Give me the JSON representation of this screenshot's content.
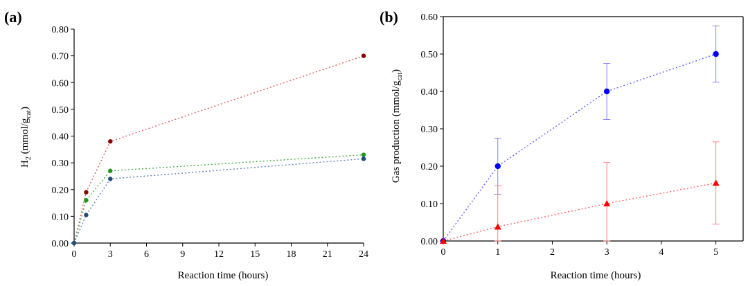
{
  "chart_data": [
    {
      "panel_label": "(a)",
      "type": "line",
      "xlabel": "Reaction time (hours)",
      "ylabel": "H",
      "ylabel_sub": "2",
      "ylabel_unit_pre": " (mmol/g",
      "ylabel_unit_sub": "cat",
      "ylabel_unit_post": ")",
      "xlim": [
        0,
        24
      ],
      "ylim": [
        0,
        0.8
      ],
      "xticks": [
        0,
        3,
        6,
        9,
        12,
        15,
        18,
        21,
        24
      ],
      "xtick_labels": [
        "0",
        "3",
        "6",
        "9",
        "12",
        "15",
        "18",
        "21",
        "24"
      ],
      "yticks": [
        0,
        0.1,
        0.2,
        0.3,
        0.4,
        0.5,
        0.6,
        0.7,
        0.8
      ],
      "ytick_labels": [
        "0.00",
        "0.10",
        "0.20",
        "0.30",
        "0.40",
        "0.50",
        "0.60",
        "0.70",
        "0.80"
      ],
      "series": [
        {
          "name": "series-red",
          "color": "#8b0000",
          "line_color": "#e06060",
          "x": [
            0,
            1,
            3,
            24
          ],
          "y": [
            0,
            0.19,
            0.38,
            0.7
          ]
        },
        {
          "name": "series-green",
          "color": "#1a9a1a",
          "line_color": "#40b040",
          "x": [
            0,
            1,
            3,
            24
          ],
          "y": [
            0,
            0.16,
            0.27,
            0.33
          ]
        },
        {
          "name": "series-blue",
          "color": "#1f4e79",
          "line_color": "#6080c0",
          "x": [
            0,
            1,
            3,
            24
          ],
          "y": [
            0,
            0.105,
            0.24,
            0.315
          ]
        }
      ]
    },
    {
      "panel_label": "(b)",
      "type": "line",
      "xlabel": "Reaction time (hours)",
      "ylabel": "Gas production (mmol/g",
      "ylabel_unit_sub": "cat",
      "ylabel_unit_post": ")",
      "xlim": [
        0,
        5.5
      ],
      "ylim": [
        0,
        0.6
      ],
      "xticks": [
        0,
        1,
        2,
        3,
        4,
        5
      ],
      "xtick_labels": [
        "0",
        "1",
        "2",
        "3",
        "4",
        "5"
      ],
      "yticks": [
        0,
        0.1,
        0.2,
        0.3,
        0.4,
        0.5,
        0.6
      ],
      "ytick_labels": [
        "0.00",
        "0.10",
        "0.20",
        "0.30",
        "0.40",
        "0.50",
        "0.60"
      ],
      "series": [
        {
          "name": "series-blue-circle",
          "marker": "circle",
          "color": "#0000ff",
          "line_color": "#6060ff",
          "err_color": "#8080ff",
          "x": [
            0,
            1,
            3,
            5
          ],
          "y": [
            0,
            0.2,
            0.4,
            0.5
          ],
          "err": [
            0,
            0.075,
            0.075,
            0.075
          ]
        },
        {
          "name": "series-red-triangle",
          "marker": "triangle",
          "color": "#ff0000",
          "line_color": "#ff6060",
          "err_color": "#ff8080",
          "x": [
            0,
            1,
            3,
            5
          ],
          "y": [
            0,
            0.038,
            0.1,
            0.155
          ],
          "err": [
            0,
            0.11,
            0.11,
            0.11
          ]
        }
      ]
    }
  ]
}
